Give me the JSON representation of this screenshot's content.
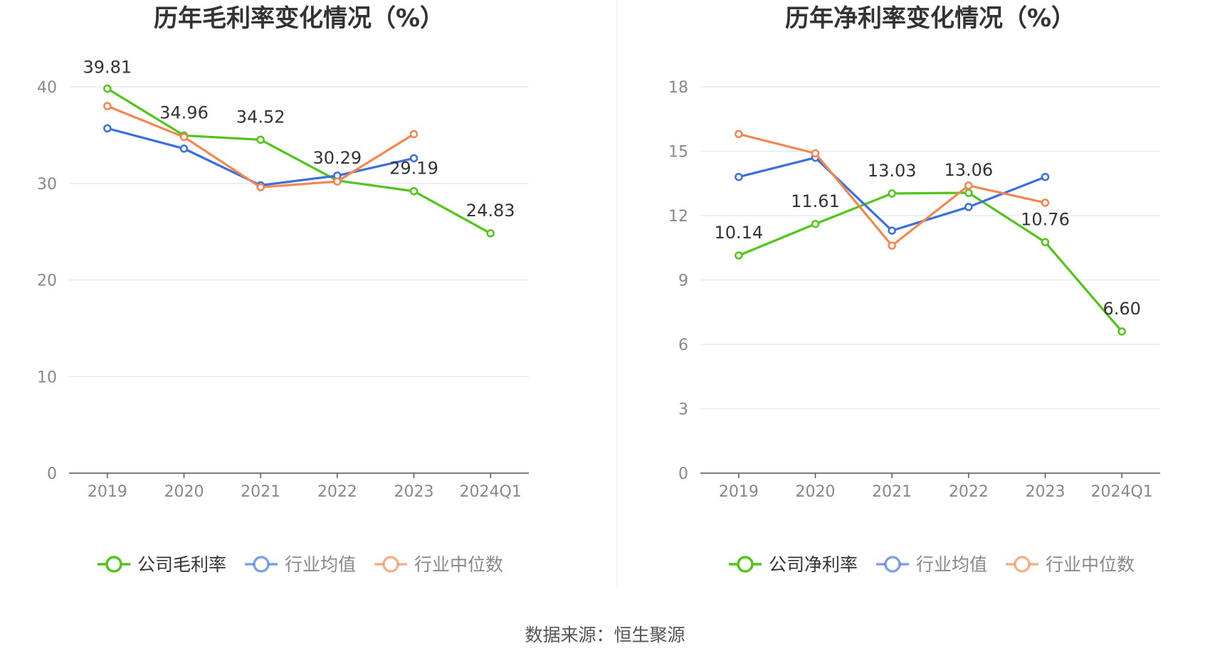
{
  "colors": {
    "company": "#52c41a",
    "industry_avg": "#3b6fdc",
    "industry_median": "#f5864f",
    "grid": "#e3e5f0",
    "axis": "#555555",
    "tick": "#888888",
    "title": "#333333"
  },
  "footer": {
    "source": "数据来源：恒生聚源"
  },
  "chart_data": [
    {
      "type": "line",
      "title": "历年毛利率变化情况（%）",
      "categories": [
        "2019",
        "2020",
        "2021",
        "2022",
        "2023",
        "2024Q1"
      ],
      "ylim": [
        0,
        40
      ],
      "yticks": [
        "0",
        "10",
        "20",
        "30",
        "40"
      ],
      "grid": true,
      "legend_position": "bottom",
      "series": [
        {
          "name": "公司毛利率",
          "key": "company",
          "values": [
            39.81,
            34.96,
            34.52,
            30.29,
            29.19,
            24.83
          ],
          "labels": [
            "39.81",
            "34.96",
            "34.52",
            "30.29",
            "29.19",
            "24.83"
          ]
        },
        {
          "name": "行业均值",
          "key": "industry_avg",
          "values": [
            35.7,
            33.6,
            29.8,
            30.8,
            32.6,
            null
          ]
        },
        {
          "name": "行业中位数",
          "key": "industry_median",
          "values": [
            38.0,
            34.8,
            29.6,
            30.2,
            35.1,
            null
          ]
        }
      ]
    },
    {
      "type": "line",
      "title": "历年净利率变化情况（%）",
      "categories": [
        "2019",
        "2020",
        "2021",
        "2022",
        "2023",
        "2024Q1"
      ],
      "ylim": [
        0,
        18
      ],
      "yticks": [
        "0",
        "3",
        "6",
        "9",
        "12",
        "15",
        "18"
      ],
      "grid": true,
      "legend_position": "bottom",
      "series": [
        {
          "name": "公司净利率",
          "key": "company",
          "values": [
            10.14,
            11.61,
            13.03,
            13.06,
            10.76,
            6.6
          ],
          "labels": [
            "10.14",
            "11.61",
            "13.03",
            "13.06",
            "10.76",
            "6.60"
          ]
        },
        {
          "name": "行业均值",
          "key": "industry_avg",
          "values": [
            13.8,
            14.7,
            11.3,
            12.4,
            13.8,
            null
          ]
        },
        {
          "name": "行业中位数",
          "key": "industry_median",
          "values": [
            15.8,
            14.9,
            10.6,
            13.4,
            12.6,
            null
          ]
        }
      ]
    }
  ]
}
